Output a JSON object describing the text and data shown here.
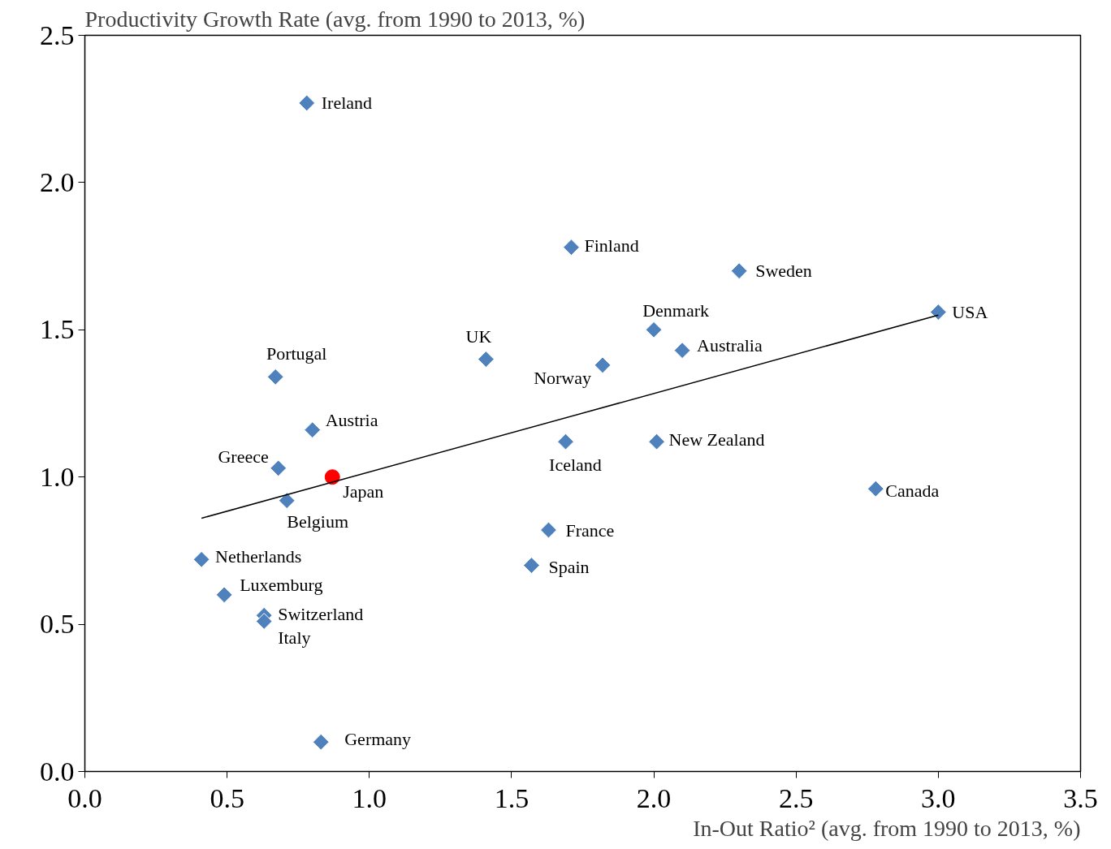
{
  "chart_data": {
    "type": "scatter",
    "ylabel": "Productivity Growth Rate (avg. from 1990 to 2013, %)",
    "xlabel": "In-Out Ratio² (avg. from 1990 to 2013, %)",
    "xlim": [
      0,
      3.5
    ],
    "ylim": [
      0,
      2.5
    ],
    "xticks": [
      {
        "value": 0,
        "label": "0.0"
      },
      0.5,
      {
        "value": 1,
        "label": "1.0"
      },
      1.5,
      {
        "value": 2,
        "label": "2.0"
      },
      2.5,
      {
        "value": 3,
        "label": "3.0"
      },
      3.5
    ],
    "yticks": [
      {
        "value": 0,
        "label": "0.0"
      },
      0.5,
      {
        "value": 1,
        "label": "1.0"
      },
      1.5,
      {
        "value": 2,
        "label": "2.0"
      },
      2.5
    ],
    "grid": false,
    "series": [
      {
        "marker": "diamond",
        "color": "#4f81bd",
        "x": [
          0.78,
          1.71,
          2.3,
          3.0,
          2.0,
          2.1,
          1.41,
          1.82,
          0.67,
          0.8,
          1.69,
          2.01,
          0.68,
          2.78,
          0.71,
          1.63,
          0.41,
          1.57,
          0.49,
          0.63,
          0.63,
          0.83
        ],
        "values": [
          2.27,
          1.78,
          1.7,
          1.56,
          1.5,
          1.43,
          1.4,
          1.38,
          1.34,
          1.16,
          1.12,
          1.12,
          1.03,
          0.96,
          0.92,
          0.82,
          0.72,
          0.7,
          0.6,
          0.53,
          0.51,
          0.1
        ]
      },
      {
        "marker": "circle",
        "color": "#ff0000",
        "x": [
          0.87
        ],
        "values": [
          1.0
        ]
      },
      {
        "type": "line",
        "color": "#000000",
        "x": [
          0.41,
          3.0
        ],
        "values": [
          0.86,
          1.55
        ]
      }
    ],
    "annotations": [
      {
        "text": "Ireland",
        "x": 0.78,
        "y": 2.27
      },
      {
        "text": "Finland",
        "x": 1.71,
        "y": 1.78
      },
      {
        "text": "Sweden",
        "x": 2.3,
        "y": 1.7
      },
      {
        "text": "USA",
        "x": 3.0,
        "y": 1.56
      },
      {
        "text": "Denmark",
        "x": 2.0,
        "y": 1.5
      },
      {
        "text": "Australia",
        "x": 2.1,
        "y": 1.43
      },
      {
        "text": "UK",
        "x": 1.41,
        "y": 1.4
      },
      {
        "text": "Norway",
        "x": 1.82,
        "y": 1.38
      },
      {
        "text": "Portugal",
        "x": 0.67,
        "y": 1.34
      },
      {
        "text": "Austria",
        "x": 0.8,
        "y": 1.16
      },
      {
        "text": "Iceland",
        "x": 1.69,
        "y": 1.12
      },
      {
        "text": "New Zealand",
        "x": 2.01,
        "y": 1.12
      },
      {
        "text": "Greece",
        "x": 0.68,
        "y": 1.03
      },
      {
        "text": "Japan",
        "x": 0.87,
        "y": 1.0
      },
      {
        "text": "Canada",
        "x": 2.78,
        "y": 0.96
      },
      {
        "text": "Belgium",
        "x": 0.71,
        "y": 0.92
      },
      {
        "text": "France",
        "x": 1.63,
        "y": 0.82
      },
      {
        "text": "Netherlands",
        "x": 0.41,
        "y": 0.72
      },
      {
        "text": "Spain",
        "x": 1.57,
        "y": 0.7
      },
      {
        "text": "Luxemburg",
        "x": 0.49,
        "y": 0.6
      },
      {
        "text": "Switzerland",
        "x": 0.63,
        "y": 0.53
      },
      {
        "text": "Italy",
        "x": 0.63,
        "y": 0.51
      },
      {
        "text": "Germany",
        "x": 0.83,
        "y": 0.1
      }
    ]
  }
}
